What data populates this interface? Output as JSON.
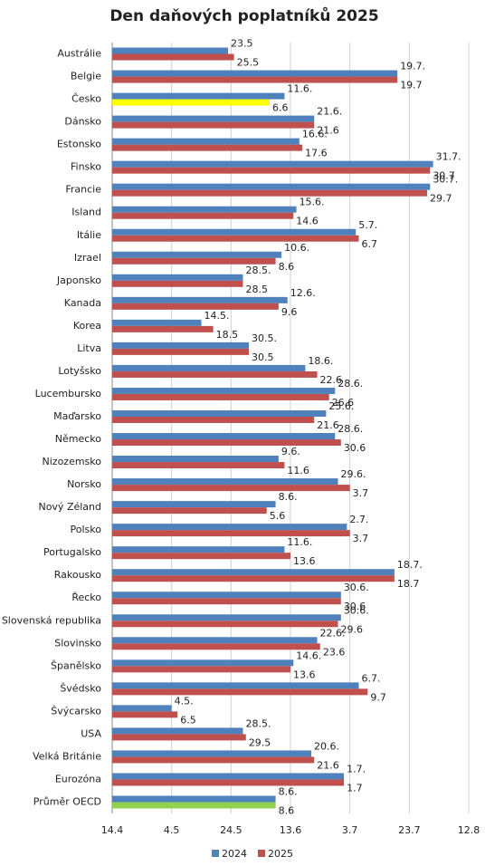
{
  "chart_data": {
    "type": "hbar",
    "title": "Den daňových poplatníků 2025",
    "categories": [
      "Austrálie",
      "Belgie",
      "Česko",
      "Dánsko",
      "Estonsko",
      "Finsko",
      "Francie",
      "Island",
      "Itálie",
      "Izrael",
      "Japonsko",
      "Kanada",
      "Korea",
      "Litva",
      "Lotyšsko",
      "Lucembursko",
      "Maďarsko",
      "Německo",
      "Nizozemsko",
      "Norsko",
      "Nový Zéland",
      "Polsko",
      "Portugalsko",
      "Rakousko",
      "Řecko",
      "Slovenská republika",
      "Slovinsko",
      "Španělsko",
      "Švédsko",
      "Švýcarsko",
      "USA",
      "Velká Británie",
      "Eurozóna",
      "Průměr OECD"
    ],
    "series": [
      {
        "name": "2024",
        "color": "#4f81bd",
        "values": [
          143,
          200,
          162,
          172,
          167,
          212,
          211,
          166,
          186,
          161,
          148,
          163,
          134,
          150,
          169,
          179,
          176,
          179,
          160,
          180,
          159,
          183,
          162,
          199,
          181,
          181,
          173,
          165,
          187,
          124,
          148,
          171,
          182,
          159
        ],
        "value_labels": [
          "23.5",
          "19.7.",
          "11.6.",
          "21.6.",
          "16.6.",
          "31.7.",
          "30.7.",
          "15.6.",
          "5.7.",
          "10.6.",
          "28.5.",
          "12.6.",
          "14.5.",
          "30.5.",
          "18.6.",
          "28.6.",
          "25.6.",
          "28.6.",
          "9.6.",
          "29.6.",
          "8.6.",
          "2.7.",
          "11.6.",
          "18.7.",
          "30.6.",
          "30.6.",
          "22.6.",
          "14.6.",
          "6.7.",
          "4.5.",
          "28.5.",
          "20.6.",
          "1.7.",
          "8.6."
        ]
      },
      {
        "name": "2025",
        "color": "#c0504d",
        "colors": [
          "#c0504d",
          "#c0504d",
          "#ffff00",
          "#c0504d",
          "#c0504d",
          "#c0504d",
          "#c0504d",
          "#c0504d",
          "#c0504d",
          "#c0504d",
          "#c0504d",
          "#c0504d",
          "#c0504d",
          "#c0504d",
          "#c0504d",
          "#c0504d",
          "#c0504d",
          "#c0504d",
          "#c0504d",
          "#c0504d",
          "#c0504d",
          "#c0504d",
          "#c0504d",
          "#c0504d",
          "#c0504d",
          "#c0504d",
          "#c0504d",
          "#c0504d",
          "#c0504d",
          "#c0504d",
          "#c0504d",
          "#c0504d",
          "#c0504d",
          "#92d050"
        ],
        "values": [
          145,
          200,
          157,
          172,
          168,
          211,
          210,
          165,
          187,
          159,
          148,
          160,
          138,
          150,
          173,
          177,
          172,
          181,
          162,
          184,
          156,
          184,
          164,
          199,
          181,
          180,
          174,
          164,
          190,
          126,
          149,
          172,
          182,
          159
        ],
        "value_labels": [
          "25.5",
          "19.7",
          "6.6",
          "21.6",
          "17.6",
          "30.7",
          "29.7",
          "14.6",
          "6.7",
          "8.6",
          "28.5",
          "9.6",
          "18.5",
          "30.5",
          "22.6",
          "26.6",
          "21.6",
          "30.6",
          "11.6",
          "3.7",
          "5.6",
          "3.7",
          "13.6",
          "18.7",
          "30.6",
          "29.6",
          "23.6",
          "13.6",
          "9.7",
          "6.5",
          "29.5",
          "21.6",
          "1.7",
          "8.6"
        ]
      }
    ],
    "xlim": [
      104,
      224
    ],
    "xticks": [
      {
        "value": 104,
        "label": "14.4"
      },
      {
        "value": 124,
        "label": "4.5"
      },
      {
        "value": 144,
        "label": "24.5"
      },
      {
        "value": 164,
        "label": "13.6"
      },
      {
        "value": 184,
        "label": "3.7"
      },
      {
        "value": 204,
        "label": "23.7"
      },
      {
        "value": 224,
        "label": "12.8"
      }
    ],
    "grid": true
  }
}
